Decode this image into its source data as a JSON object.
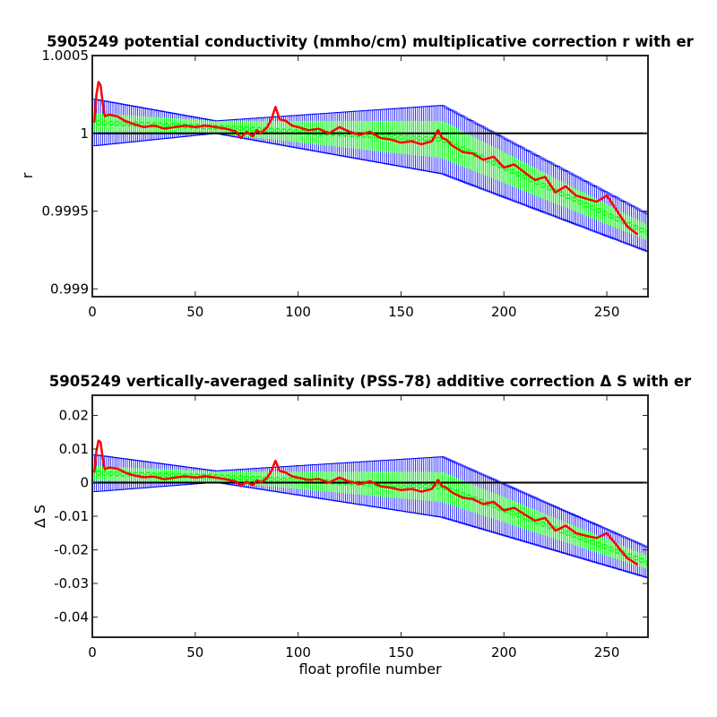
{
  "chart_data": [
    {
      "type": "line",
      "title": "5905249 potential conductivity (mmho/cm) multiplicative correction r with er",
      "xlabel": "",
      "ylabel": "r",
      "xlim": [
        0,
        270
      ],
      "ylim": [
        0.99895,
        1.0005
      ],
      "xticks": [
        0,
        50,
        100,
        150,
        200,
        250
      ],
      "xtick_labels": [
        "0",
        "50",
        "100",
        "150",
        "200",
        "250"
      ],
      "yticks": [
        0.999,
        0.9995,
        1,
        1.0005
      ],
      "ytick_labels": [
        "0.999",
        "0.9995",
        "1",
        "1.0005"
      ],
      "reference_line": 1,
      "colors": {
        "measured": "#ff0000",
        "fit": "#00ff00",
        "error_bars": "#0000ff",
        "reference": "#000000"
      },
      "fit_knots": {
        "x": [
          1,
          60,
          170,
          270
        ],
        "y": [
          1.00007,
          1.00004,
          0.99996,
          0.99936
        ]
      },
      "fit_error_half_width": {
        "x": [
          1,
          60,
          170,
          270
        ],
        "y": [
          6e-05,
          4e-05,
          0.00012,
          5e-05
        ]
      },
      "outer_error_half_width": {
        "x": [
          1,
          60,
          170,
          270
        ],
        "y": [
          0.00015,
          4e-05,
          0.00022,
          0.00012
        ]
      },
      "measured": {
        "x": [
          1,
          2,
          3,
          4,
          5,
          6,
          8,
          12,
          16,
          20,
          25,
          30,
          35,
          40,
          45,
          50,
          55,
          60,
          65,
          70,
          72,
          75,
          78,
          80,
          82,
          85,
          87,
          89,
          91,
          94,
          97,
          100,
          105,
          110,
          115,
          120,
          125,
          130,
          135,
          140,
          145,
          150,
          155,
          160,
          165,
          168,
          170,
          172,
          175,
          180,
          185,
          190,
          195,
          200,
          205,
          210,
          215,
          220,
          225,
          230,
          235,
          240,
          245,
          250,
          255,
          260,
          265
        ],
        "y": [
          1.00007,
          1.00025,
          1.00033,
          1.00031,
          1.0002,
          1.00011,
          1.00012,
          1.00011,
          1.00008,
          1.00006,
          1.00004,
          1.00005,
          1.00003,
          1.00004,
          1.00005,
          1.00004,
          1.00005,
          1.00004,
          1.00003,
          1.00001,
          0.99997,
          1.00001,
          0.99998,
          1.00002,
          1.0,
          1.00004,
          1.00009,
          1.00017,
          1.00009,
          1.00008,
          1.00005,
          1.00004,
          1.00002,
          1.00003,
          1.0,
          1.00004,
          1.00001,
          0.99999,
          1.00001,
          0.99997,
          0.99996,
          0.99994,
          0.99995,
          0.99993,
          0.99995,
          1.00002,
          0.99997,
          0.99996,
          0.99992,
          0.99988,
          0.99987,
          0.99983,
          0.99985,
          0.99978,
          0.9998,
          0.99975,
          0.9997,
          0.99972,
          0.99962,
          0.99966,
          0.9996,
          0.99958,
          0.99956,
          0.9996,
          0.9995,
          0.9994,
          0.99935
        ]
      }
    },
    {
      "type": "line",
      "title": "5905249 vertically-averaged salinity (PSS-78) additive correction Δ S with er",
      "xlabel": "float profile number",
      "ylabel": "Δ S",
      "xlim": [
        0,
        270
      ],
      "ylim": [
        -0.046,
        0.026
      ],
      "xticks": [
        0,
        50,
        100,
        150,
        200,
        250
      ],
      "xtick_labels": [
        "0",
        "50",
        "100",
        "150",
        "200",
        "250"
      ],
      "yticks": [
        -0.04,
        -0.03,
        -0.02,
        -0.01,
        0,
        0.01,
        0.02
      ],
      "ytick_labels": [
        "-0.04",
        "-0.03",
        "-0.02",
        "-0.01",
        "0",
        "0.01",
        "0.02"
      ],
      "reference_line": 0,
      "colors": {
        "measured": "#ff0000",
        "fit": "#00ff00",
        "error_bars": "#0000ff",
        "reference": "#000000"
      },
      "fit_knots": {
        "x": [
          1,
          60,
          170,
          270
        ],
        "y": [
          0.0028,
          0.0018,
          -0.0013,
          -0.0238
        ]
      },
      "fit_error_half_width": {
        "x": [
          1,
          60,
          170,
          270
        ],
        "y": [
          0.0022,
          0.0015,
          0.0045,
          0.002
        ]
      },
      "outer_error_half_width": {
        "x": [
          1,
          60,
          170,
          270
        ],
        "y": [
          0.0055,
          0.0017,
          0.009,
          0.0045
        ]
      },
      "measured": {
        "x": [
          1,
          2,
          3,
          4,
          5,
          6,
          8,
          12,
          16,
          20,
          25,
          30,
          35,
          40,
          45,
          50,
          55,
          60,
          65,
          70,
          72,
          75,
          78,
          80,
          82,
          85,
          87,
          89,
          91,
          94,
          97,
          100,
          105,
          110,
          115,
          120,
          125,
          130,
          135,
          140,
          145,
          150,
          155,
          160,
          165,
          168,
          170,
          172,
          175,
          180,
          185,
          190,
          195,
          200,
          205,
          210,
          215,
          220,
          225,
          230,
          235,
          240,
          245,
          250,
          255,
          260,
          265
        ],
        "y": [
          0.003,
          0.0095,
          0.0125,
          0.012,
          0.0075,
          0.004,
          0.0045,
          0.0042,
          0.003,
          0.0022,
          0.0016,
          0.0018,
          0.001,
          0.0015,
          0.0019,
          0.0015,
          0.0019,
          0.0015,
          0.001,
          0.0003,
          -0.001,
          0.0003,
          -0.0008,
          0.0007,
          0.0,
          0.0015,
          0.0035,
          0.0065,
          0.0035,
          0.003,
          0.0019,
          0.0015,
          0.0008,
          0.0011,
          0.0,
          0.0015,
          0.0003,
          -0.0004,
          0.0004,
          -0.0011,
          -0.0015,
          -0.0022,
          -0.0019,
          -0.0027,
          -0.0019,
          0.0008,
          -0.0011,
          -0.0015,
          -0.003,
          -0.0045,
          -0.0049,
          -0.0064,
          -0.0057,
          -0.0083,
          -0.0075,
          -0.0094,
          -0.0113,
          -0.0105,
          -0.0143,
          -0.0128,
          -0.015,
          -0.0158,
          -0.0165,
          -0.015,
          -0.0188,
          -0.0225,
          -0.0244
        ]
      }
    }
  ]
}
